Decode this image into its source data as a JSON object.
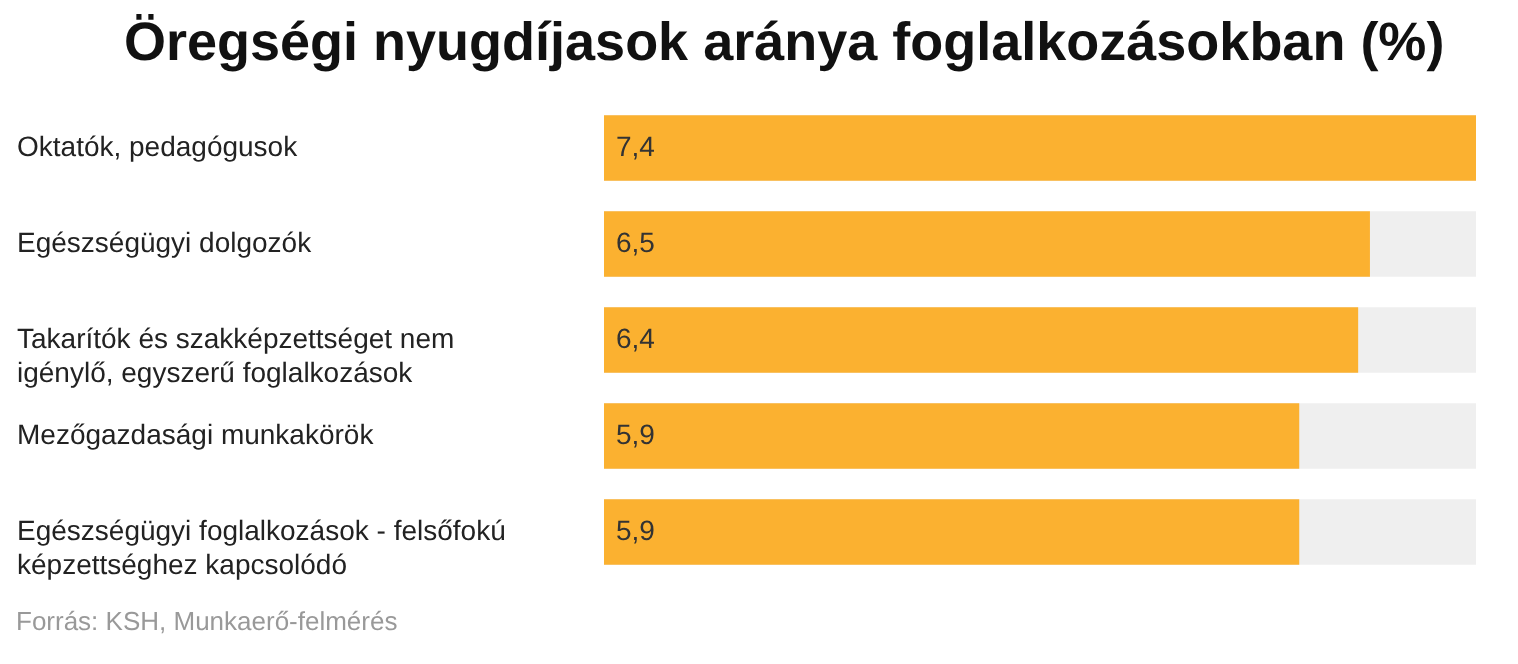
{
  "chart_data": {
    "type": "bar",
    "orientation": "horizontal",
    "title": "Öregségi nyugdíjasok aránya foglalkozásokban (%)",
    "categories": [
      "Oktatók, pedagógusok",
      "Egészségügyi dolgozók",
      "Takarítók és szakképzettséget nem igénylő, egyszerű foglalkozások",
      "Mezőgazdasági munkakörök",
      "Egészségügyi foglalkozások - felsőfokú képzettséghez kapcsolódó"
    ],
    "values": [
      7.4,
      6.5,
      6.4,
      5.9,
      5.9
    ],
    "color": "#fbb130",
    "value_labels": [
      "7,4",
      "6,5",
      "6,4",
      "5,9",
      "5,9"
    ],
    "annotations": [
      "Forrás: KSH, Munkaerő-felmérés"
    ]
  }
}
